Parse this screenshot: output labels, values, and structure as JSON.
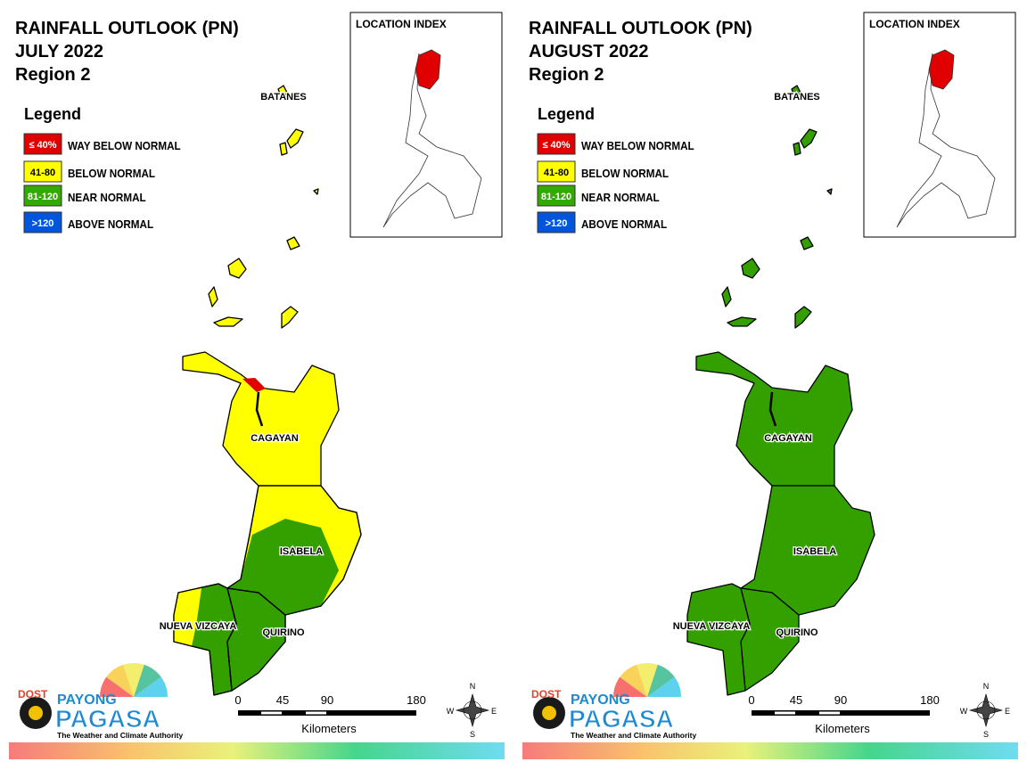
{
  "panels": [
    {
      "title": [
        "RAINFALL OUTLOOK (PN)",
        "JULY 2022",
        "Region 2"
      ],
      "legend": {
        "title": "Legend",
        "items": [
          {
            "key": "≤ 40%",
            "label": "WAY BELOW NORMAL",
            "color": "#e00000"
          },
          {
            "key": "41-80",
            "label": "BELOW NORMAL",
            "color": "#ffff00"
          },
          {
            "key": "81-120",
            "label": "NEAR NORMAL",
            "color": "#33aa00"
          },
          {
            "key": ">120",
            "label": "ABOVE NORMAL",
            "color": "#0055dd"
          }
        ]
      },
      "location_index": "LOCATION INDEX",
      "places": [
        "BATANES",
        "CAGAYAN",
        "ISABELA",
        "NUEVA VIZCAYA",
        "QUIRINO"
      ],
      "scale_bar": {
        "ticks": [
          0,
          45,
          90,
          180
        ],
        "unit": "Kilometers"
      },
      "compass": {
        "n": "N",
        "e": "E",
        "s": "S",
        "w": "W"
      },
      "logo": {
        "agency": "DOST",
        "brand": "PAYONG",
        "name": "PAGASA",
        "tagline": "The Weather and Climate Authority"
      }
    },
    {
      "title": [
        "RAINFALL OUTLOOK (PN)",
        "AUGUST 2022",
        "Region 2"
      ],
      "legend": {
        "title": "Legend",
        "items": [
          {
            "key": "≤ 40%",
            "label": "WAY BELOW NORMAL",
            "color": "#e00000"
          },
          {
            "key": "41-80",
            "label": "BELOW NORMAL",
            "color": "#ffff00"
          },
          {
            "key": "81-120",
            "label": "NEAR NORMAL",
            "color": "#33aa00"
          },
          {
            "key": ">120",
            "label": "ABOVE NORMAL",
            "color": "#0055dd"
          }
        ]
      },
      "location_index": "LOCATION INDEX",
      "places": [
        "BATANES",
        "CAGAYAN",
        "ISABELA",
        "NUEVA VIZCAYA",
        "QUIRINO"
      ],
      "scale_bar": {
        "ticks": [
          0,
          45,
          90,
          180
        ],
        "unit": "Kilometers"
      },
      "compass": {
        "n": "N",
        "e": "E",
        "s": "S",
        "w": "W"
      },
      "logo": {
        "agency": "DOST",
        "brand": "PAYONG",
        "name": "PAGASA",
        "tagline": "The Weather and Climate Authority"
      }
    }
  ]
}
